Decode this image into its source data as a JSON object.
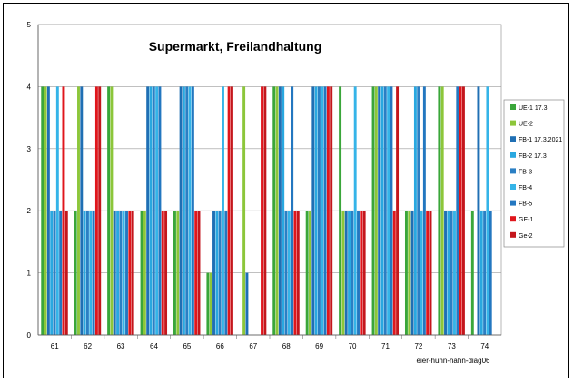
{
  "chart_data": {
    "type": "bar",
    "title": "Supermarkt, Freilandhaltung",
    "footnote": "eier-huhn-hahn-diag06",
    "xlabel": "",
    "ylabel": "",
    "ylim": [
      0,
      5
    ],
    "yticks": [
      "0",
      "1",
      "2",
      "3",
      "4",
      "5"
    ],
    "grid": true,
    "legend_position": "right",
    "categories": [
      "61",
      "62",
      "63",
      "64",
      "65",
      "66",
      "67",
      "68",
      "69",
      "70",
      "71",
      "72",
      "73",
      "74"
    ],
    "series": [
      {
        "name": "UE-1 17.3",
        "color": "#3aa63a",
        "values": [
          4,
          2,
          4,
          2,
          2,
          1,
          0,
          4,
          2,
          4,
          4,
          2,
          4,
          2
        ]
      },
      {
        "name": "UE-2",
        "color": "#8cc63a",
        "values": [
          4,
          4,
          4,
          2,
          2,
          1,
          4,
          4,
          2,
          2,
          4,
          2,
          4,
          0
        ]
      },
      {
        "name": "FB-1 17.3.2021",
        "color": "#1f6fb4",
        "values": [
          4,
          4,
          2,
          4,
          4,
          2,
          1,
          4,
          4,
          2,
          4,
          2,
          2,
          4
        ]
      },
      {
        "name": "FB-2 17.3",
        "color": "#29a8e0",
        "values": [
          2,
          2,
          2,
          4,
          4,
          2,
          0,
          4,
          4,
          2,
          4,
          4,
          2,
          2
        ]
      },
      {
        "name": "FB-3",
        "color": "#2a7fc4",
        "values": [
          2,
          2,
          2,
          4,
          4,
          2,
          0,
          2,
          4,
          2,
          4,
          4,
          2,
          2
        ]
      },
      {
        "name": "FB-4",
        "color": "#35b4e8",
        "values": [
          4,
          2,
          2,
          4,
          4,
          4,
          0,
          2,
          4,
          4,
          4,
          2,
          2,
          4
        ]
      },
      {
        "name": "FB-5",
        "color": "#2377c0",
        "values": [
          2,
          2,
          2,
          4,
          4,
          2,
          0,
          4,
          4,
          2,
          4,
          4,
          4,
          2
        ]
      },
      {
        "name": "GE-1",
        "color": "#e0161c",
        "values": [
          4,
          4,
          2,
          2,
          2,
          4,
          4,
          2,
          4,
          2,
          2,
          2,
          4,
          0
        ]
      },
      {
        "name": "Ge-2",
        "color": "#c4161c",
        "values": [
          2,
          4,
          2,
          2,
          2,
          4,
          4,
          2,
          4,
          2,
          4,
          2,
          4,
          0
        ]
      }
    ]
  }
}
